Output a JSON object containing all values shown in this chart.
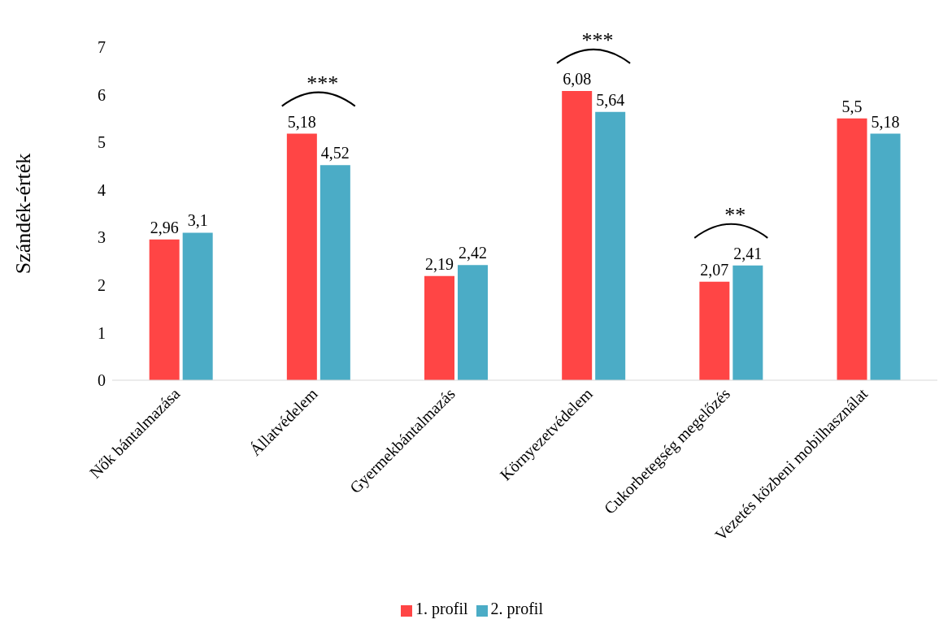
{
  "chart_data": {
    "type": "bar",
    "ylabel": "Szándék-érték",
    "categories": [
      "Nők bántalmazása",
      "Állatvédelem",
      "Gyermekbántalmazás",
      "Környezetvédelem",
      "Cukorbetegség megelőzés",
      "Vezetés közbeni mobilhasználat"
    ],
    "series": [
      {
        "name": "1. profil",
        "color": "#ff4545",
        "values": [
          2.96,
          5.18,
          2.19,
          6.08,
          2.07,
          5.5
        ],
        "value_labels": [
          "2,96",
          "5,18",
          "2,19",
          "6,08",
          "2,07",
          "5,5"
        ]
      },
      {
        "name": "2. profil",
        "color": "#4bacc6",
        "values": [
          3.1,
          4.52,
          2.42,
          5.64,
          2.41,
          5.18
        ],
        "value_labels": [
          "3,1",
          "4,52",
          "2,42",
          "5,64",
          "2,41",
          "5,18"
        ]
      }
    ],
    "ylim": [
      0,
      7
    ],
    "yticks": [
      0,
      1,
      2,
      3,
      4,
      5,
      6,
      7
    ],
    "grid": false,
    "legend": "bottom",
    "annotations": [
      "***",
      "***",
      "**"
    ]
  }
}
